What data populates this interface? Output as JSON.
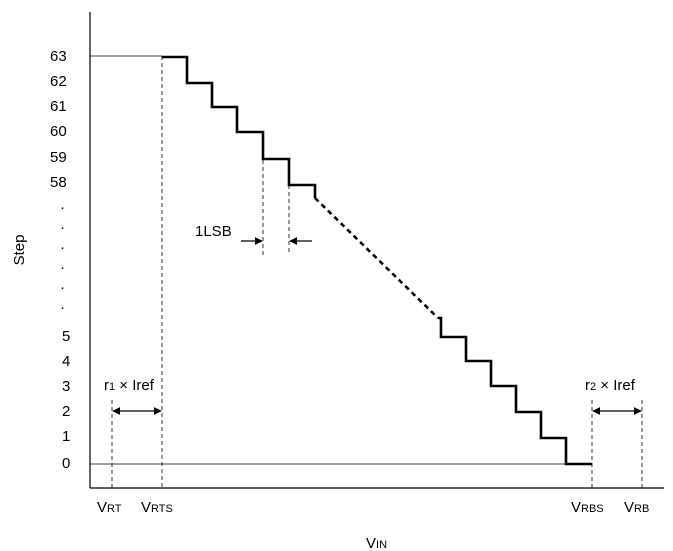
{
  "diagram": {
    "y_axis_label": "Step",
    "x_axis_label": {
      "main": "V",
      "sub": "IN"
    },
    "y_ticks_top": [
      "63",
      "62",
      "61",
      "60",
      "59",
      "58"
    ],
    "y_ticks_bottom": [
      "5",
      "4",
      "3",
      "2",
      "1",
      "0"
    ],
    "y_ellipsis": "·",
    "x_labels": [
      {
        "main": "V",
        "sub": "RT"
      },
      {
        "main": "V",
        "sub": "RTS"
      },
      {
        "main": "V",
        "sub": "RBS"
      },
      {
        "main": "V",
        "sub": "RB"
      }
    ],
    "annotations": {
      "lsb": "1LSB",
      "r1_iref": {
        "r": "r",
        "sub": "1",
        "rest": " × Iref"
      },
      "r2_iref": {
        "r": "r",
        "sub": "2",
        "rest": " × Iref"
      }
    },
    "colors": {
      "line": "#000000",
      "background": "#ffffff"
    }
  }
}
